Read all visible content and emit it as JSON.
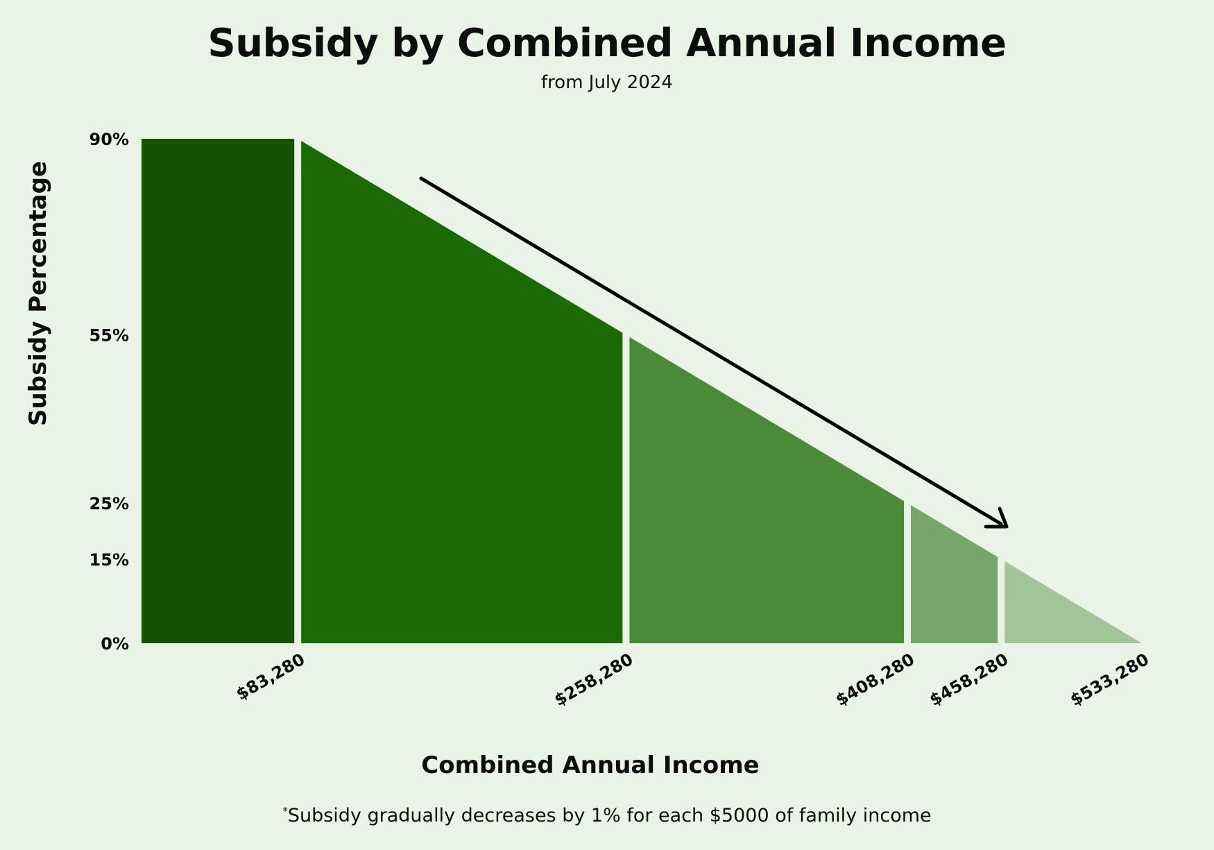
{
  "chart_data": {
    "type": "area",
    "title": "Subsidy by Combined Annual Income",
    "subtitle": "from July 2024",
    "xlabel": "Combined Annual Income",
    "ylabel": "Subsidy Percentage",
    "footnote_mark": "*",
    "footnote": "Subsidy gradually decreases by 1% for each $5000 of family income",
    "xlim": [
      0,
      533280
    ],
    "ylim": [
      0,
      90
    ],
    "y_ticks": [
      {
        "value": 90,
        "label": "90%"
      },
      {
        "value": 55,
        "label": "55%"
      },
      {
        "value": 25,
        "label": "25%"
      },
      {
        "value": 15,
        "label": "15%"
      },
      {
        "value": 0,
        "label": "0%"
      }
    ],
    "x_ticks": [
      {
        "value": 83280,
        "label": "$83,280"
      },
      {
        "value": 258280,
        "label": "$258,280"
      },
      {
        "value": 408280,
        "label": "$408,280"
      },
      {
        "value": 458280,
        "label": "$458,280"
      },
      {
        "value": 533280,
        "label": "$533,280"
      }
    ],
    "segments": [
      {
        "x": [
          0,
          83280
        ],
        "y": [
          90,
          90
        ],
        "color": "#155205"
      },
      {
        "x": [
          83280,
          258280
        ],
        "y": [
          90,
          55
        ],
        "color": "#1b6a06"
      },
      {
        "x": [
          258280,
          408280
        ],
        "y": [
          55,
          25
        ],
        "color": "#4a8a38"
      },
      {
        "x": [
          408280,
          458280
        ],
        "y": [
          25,
          15
        ],
        "color": "#77a66b"
      },
      {
        "x": [
          458280,
          533280
        ],
        "y": [
          15,
          0
        ],
        "color": "#a3c49a"
      }
    ],
    "trend_arrow": {
      "color": "#000000",
      "meaning": "decreasing subsidy"
    },
    "grid": false,
    "legend": "none"
  }
}
